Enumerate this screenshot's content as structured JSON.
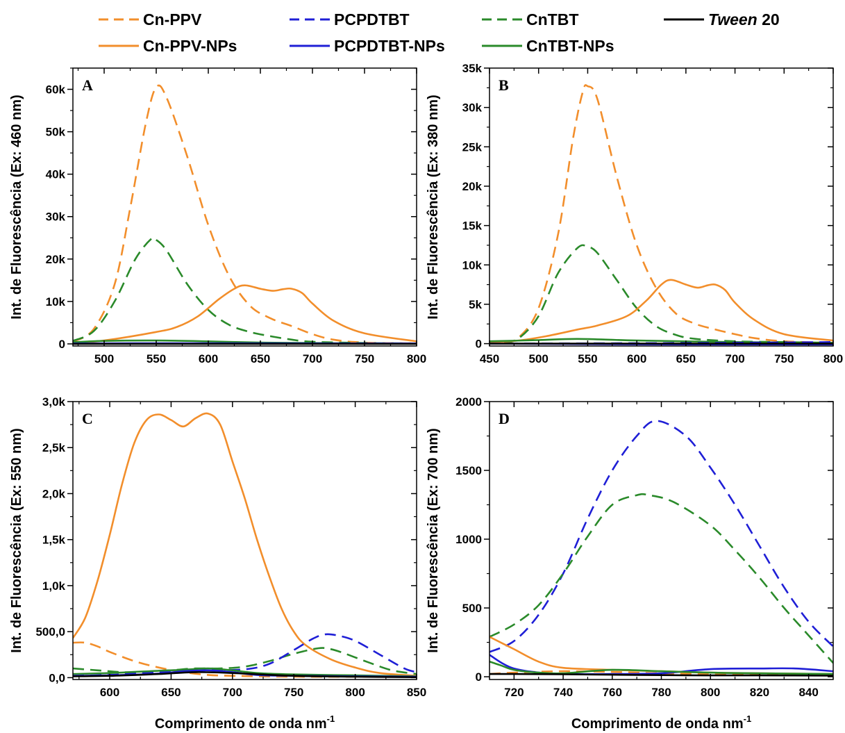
{
  "legend": {
    "items": [
      {
        "label": "Cn-PPV",
        "color": "#f28e2b",
        "dash": true
      },
      {
        "label": "PCPDTBT",
        "color": "#1f1fd6",
        "dash": true
      },
      {
        "label": "CnTBT",
        "color": "#2a8a2a",
        "dash": true
      },
      {
        "label_italic": "Tween",
        "label_rest": " 20",
        "color": "#000000",
        "dash": false
      },
      {
        "label": "Cn-PPV-NPs",
        "color": "#f28e2b",
        "dash": false
      },
      {
        "label": "PCPDTBT-NPs",
        "color": "#1f1fd6",
        "dash": false
      },
      {
        "label": "CnTBT-NPs",
        "color": "#2a8a2a",
        "dash": false
      }
    ]
  },
  "chart_data": [
    {
      "panel": "A",
      "type": "line",
      "ylabel": "Int. de Fluorescência (Ex: 460 nm)",
      "xlabel": "",
      "xlim": [
        470,
        800
      ],
      "ylim": [
        -500,
        65000
      ],
      "xticks": [
        "500",
        "550",
        "600",
        "650",
        "700",
        "750",
        "800"
      ],
      "xtick_values": [
        500,
        550,
        600,
        650,
        700,
        750,
        800
      ],
      "yticks": [
        "0",
        "10k",
        "20k",
        "30k",
        "40k",
        "50k",
        "60k"
      ],
      "ytick_values": [
        0,
        10000,
        20000,
        30000,
        40000,
        50000,
        60000
      ],
      "series": [
        {
          "name": "Cn-PPV",
          "color": "#f28e2b",
          "dash": true,
          "x": [
            470,
            490,
            510,
            525,
            540,
            550,
            560,
            580,
            600,
            620,
            640,
            660,
            680,
            700,
            720,
            750,
            800
          ],
          "y": [
            500,
            3500,
            14000,
            32000,
            52000,
            60500,
            58000,
            44000,
            28000,
            16000,
            9000,
            6000,
            4200,
            2300,
            1000,
            300,
            100
          ]
        },
        {
          "name": "CnTBT",
          "color": "#2a8a2a",
          "dash": true,
          "x": [
            470,
            490,
            510,
            530,
            545,
            550,
            560,
            580,
            600,
            620,
            640,
            660,
            680,
            700,
            750,
            800
          ],
          "y": [
            700,
            3000,
            10000,
            20000,
            24700,
            24500,
            22000,
            14000,
            8000,
            4500,
            2800,
            1800,
            1000,
            500,
            200,
            100
          ]
        },
        {
          "name": "Cn-PPV-NPs",
          "color": "#f28e2b",
          "dash": false,
          "x": [
            470,
            500,
            550,
            570,
            590,
            610,
            625,
            635,
            650,
            662,
            672,
            680,
            690,
            700,
            720,
            750,
            800
          ],
          "y": [
            200,
            800,
            2800,
            4000,
            6500,
            10500,
            13000,
            13800,
            13000,
            12500,
            12900,
            13000,
            12000,
            9500,
            5500,
            2500,
            600
          ]
        },
        {
          "name": "CnTBT-NPs",
          "color": "#2a8a2a",
          "dash": false,
          "x": [
            470,
            500,
            550,
            600,
            650,
            700,
            750,
            800
          ],
          "y": [
            400,
            700,
            800,
            600,
            300,
            200,
            100,
            50
          ]
        },
        {
          "name": "PCPDTBT-NPs",
          "color": "#1f1fd6",
          "dash": false,
          "x": [
            470,
            550,
            650,
            800
          ],
          "y": [
            100,
            150,
            120,
            100
          ]
        },
        {
          "name": "Tween 20",
          "color": "#000000",
          "dash": false,
          "x": [
            470,
            800
          ],
          "y": [
            0,
            0
          ]
        }
      ]
    },
    {
      "panel": "B",
      "type": "line",
      "ylabel": "Int. de Fluorescência (Ex: 380 nm)",
      "xlabel": "",
      "xlim": [
        450,
        800
      ],
      "ylim": [
        -300,
        35000
      ],
      "xticks": [
        "450",
        "500",
        "550",
        "600",
        "650",
        "700",
        "750",
        "800"
      ],
      "xtick_values": [
        450,
        500,
        550,
        600,
        650,
        700,
        750,
        800
      ],
      "yticks": [
        "0",
        "5k",
        "10k",
        "15k",
        "20k",
        "25k",
        "30k",
        "35k"
      ],
      "ytick_values": [
        0,
        5000,
        10000,
        15000,
        20000,
        25000,
        30000,
        35000
      ],
      "series": [
        {
          "name": "Cn-PPV",
          "color": "#f28e2b",
          "dash": true,
          "x": [
            465,
            480,
            500,
            520,
            535,
            545,
            550,
            560,
            580,
            600,
            620,
            640,
            660,
            680,
            700,
            720,
            750,
            800
          ],
          "y": [
            100,
            800,
            4500,
            14000,
            26000,
            32000,
            32700,
            31000,
            21000,
            12500,
            7000,
            3800,
            2500,
            1800,
            1200,
            700,
            300,
            100
          ]
        },
        {
          "name": "CnTBT",
          "color": "#2a8a2a",
          "dash": true,
          "x": [
            465,
            480,
            500,
            520,
            540,
            550,
            560,
            580,
            600,
            620,
            640,
            660,
            700,
            750,
            800
          ],
          "y": [
            100,
            700,
            3500,
            9000,
            12200,
            12300,
            11500,
            8000,
            4500,
            2200,
            1100,
            600,
            300,
            200,
            100
          ]
        },
        {
          "name": "Cn-PPV-NPs",
          "color": "#f28e2b",
          "dash": false,
          "x": [
            450,
            480,
            510,
            540,
            560,
            590,
            610,
            625,
            635,
            650,
            662,
            672,
            680,
            690,
            700,
            720,
            750,
            800
          ],
          "y": [
            200,
            400,
            1000,
            1800,
            2300,
            3500,
            5500,
            7500,
            8100,
            7500,
            7100,
            7400,
            7500,
            6800,
            5200,
            3000,
            1200,
            400
          ]
        },
        {
          "name": "CnTBT-NPs",
          "color": "#2a8a2a",
          "dash": false,
          "x": [
            450,
            500,
            540,
            600,
            700,
            800
          ],
          "y": [
            300,
            450,
            600,
            400,
            200,
            100
          ]
        },
        {
          "name": "PCPDTBT",
          "color": "#1f1fd6",
          "dash": true,
          "x": [
            450,
            600,
            750,
            800
          ],
          "y": [
            0,
            50,
            150,
            200
          ]
        },
        {
          "name": "PCPDTBT-NPs",
          "color": "#1f1fd6",
          "dash": false,
          "x": [
            450,
            550,
            650,
            800
          ],
          "y": [
            0,
            -50,
            -100,
            -100
          ]
        },
        {
          "name": "Tween 20",
          "color": "#000000",
          "dash": false,
          "x": [
            450,
            800
          ],
          "y": [
            0,
            0
          ]
        }
      ]
    },
    {
      "panel": "C",
      "type": "line",
      "ylabel": "Int. de Fluorescência (Ex: 550 nm)",
      "xlabel": "Comprimento de onda nm",
      "xlabel_sup": "-1",
      "xlim": [
        570,
        850
      ],
      "ylim": [
        -20,
        3000
      ],
      "xticks": [
        "600",
        "650",
        "700",
        "750",
        "800",
        "850"
      ],
      "xtick_values": [
        600,
        650,
        700,
        750,
        800,
        850
      ],
      "yticks": [
        "0,0",
        "500,0",
        "1,0k",
        "1,5k",
        "2,0k",
        "2,5k",
        "3,0k"
      ],
      "ytick_values": [
        0,
        500,
        1000,
        1500,
        2000,
        2500,
        3000
      ],
      "series": [
        {
          "name": "Cn-PPV-NPs",
          "color": "#f28e2b",
          "dash": false,
          "x": [
            570,
            580,
            590,
            600,
            610,
            620,
            630,
            640,
            650,
            660,
            670,
            680,
            690,
            700,
            710,
            720,
            730,
            740,
            750,
            760,
            780,
            800,
            820,
            850
          ],
          "y": [
            430,
            650,
            1050,
            1550,
            2100,
            2550,
            2800,
            2860,
            2800,
            2730,
            2820,
            2870,
            2750,
            2350,
            1950,
            1500,
            1100,
            750,
            500,
            350,
            200,
            110,
            50,
            20
          ]
        },
        {
          "name": "Cn-PPV",
          "color": "#f28e2b",
          "dash": true,
          "x": [
            570,
            580,
            590,
            600,
            620,
            640,
            660,
            680,
            700,
            720,
            750,
            800,
            850
          ],
          "y": [
            380,
            380,
            340,
            280,
            180,
            110,
            60,
            30,
            20,
            15,
            10,
            10,
            10
          ]
        },
        {
          "name": "CnTBT",
          "color": "#2a8a2a",
          "dash": true,
          "x": [
            570,
            590,
            610,
            630,
            650,
            670,
            690,
            710,
            730,
            750,
            770,
            780,
            790,
            810,
            830,
            850
          ],
          "y": [
            100,
            80,
            60,
            60,
            80,
            100,
            100,
            120,
            180,
            260,
            320,
            310,
            270,
            170,
            80,
            40
          ]
        },
        {
          "name": "PCPDTBT",
          "color": "#1f1fd6",
          "dash": true,
          "x": [
            570,
            600,
            640,
            680,
            710,
            730,
            750,
            765,
            775,
            785,
            800,
            820,
            840,
            850
          ],
          "y": [
            20,
            30,
            60,
            80,
            90,
            150,
            300,
            420,
            470,
            460,
            400,
            250,
            100,
            60
          ]
        },
        {
          "name": "CnTBT-NPs",
          "color": "#2a8a2a",
          "dash": false,
          "x": [
            570,
            600,
            640,
            660,
            680,
            700,
            720,
            750,
            800,
            850
          ],
          "y": [
            40,
            50,
            75,
            85,
            100,
            80,
            50,
            35,
            25,
            15
          ]
        },
        {
          "name": "PCPDTBT-NPs",
          "color": "#1f1fd6",
          "dash": false,
          "x": [
            570,
            600,
            640,
            660,
            680,
            700,
            720,
            750,
            800,
            850
          ],
          "y": [
            20,
            25,
            45,
            70,
            80,
            60,
            30,
            20,
            15,
            10
          ]
        },
        {
          "name": "Tween 20",
          "color": "#000000",
          "dash": false,
          "x": [
            570,
            600,
            640,
            670,
            700,
            750,
            800,
            850
          ],
          "y": [
            15,
            20,
            40,
            60,
            50,
            20,
            10,
            5
          ]
        }
      ]
    },
    {
      "panel": "D",
      "type": "line",
      "ylabel": "Int. de Fluorescência (Ex: 700 nm)",
      "xlabel": "Comprimento de onda nm",
      "xlabel_sup": "-1",
      "xlim": [
        710,
        850
      ],
      "ylim": [
        -20,
        2000
      ],
      "xticks": [
        "720",
        "740",
        "760",
        "780",
        "800",
        "820",
        "840"
      ],
      "xtick_values": [
        720,
        740,
        760,
        780,
        800,
        820,
        840
      ],
      "yticks": [
        "0",
        "500",
        "1000",
        "1500",
        "2000"
      ],
      "ytick_values": [
        0,
        500,
        1000,
        1500,
        2000
      ],
      "series": [
        {
          "name": "PCPDTBT",
          "color": "#1f1fd6",
          "dash": true,
          "x": [
            710,
            720,
            730,
            740,
            750,
            760,
            770,
            778,
            790,
            800,
            810,
            820,
            830,
            840,
            850
          ],
          "y": [
            180,
            260,
            450,
            750,
            1150,
            1500,
            1750,
            1860,
            1750,
            1520,
            1250,
            950,
            650,
            400,
            220
          ]
        },
        {
          "name": "CnTBT",
          "color": "#2a8a2a",
          "dash": true,
          "x": [
            710,
            720,
            730,
            740,
            750,
            760,
            770,
            775,
            785,
            800,
            810,
            820,
            830,
            840,
            850
          ],
          "y": [
            290,
            380,
            520,
            750,
            1020,
            1250,
            1320,
            1320,
            1270,
            1100,
            920,
            720,
            500,
            300,
            100
          ]
        },
        {
          "name": "Cn-PPV-NPs",
          "color": "#f28e2b",
          "dash": false,
          "x": [
            710,
            720,
            730,
            740,
            760,
            780,
            800,
            820,
            850
          ],
          "y": [
            290,
            200,
            110,
            65,
            50,
            40,
            30,
            25,
            20
          ]
        },
        {
          "name": "Cn-PPV",
          "color": "#f28e2b",
          "dash": true,
          "x": [
            710,
            720,
            740,
            760,
            780,
            800,
            850
          ],
          "y": [
            20,
            30,
            40,
            35,
            25,
            20,
            15
          ]
        },
        {
          "name": "PCPDTBT-NPs",
          "color": "#1f1fd6",
          "dash": false,
          "x": [
            710,
            715,
            720,
            730,
            740,
            760,
            780,
            800,
            820,
            835,
            850
          ],
          "y": [
            160,
            100,
            60,
            30,
            20,
            20,
            25,
            55,
            60,
            60,
            40
          ]
        },
        {
          "name": "CnTBT-NPs",
          "color": "#2a8a2a",
          "dash": false,
          "x": [
            710,
            715,
            720,
            730,
            740,
            760,
            780,
            800,
            820,
            850
          ],
          "y": [
            110,
            80,
            50,
            30,
            25,
            50,
            40,
            30,
            25,
            20
          ]
        },
        {
          "name": "Tween 20",
          "color": "#000000",
          "dash": false,
          "x": [
            710,
            720,
            740,
            760,
            780,
            800,
            820,
            850
          ],
          "y": [
            20,
            20,
            18,
            15,
            12,
            10,
            10,
            8
          ]
        }
      ]
    }
  ]
}
